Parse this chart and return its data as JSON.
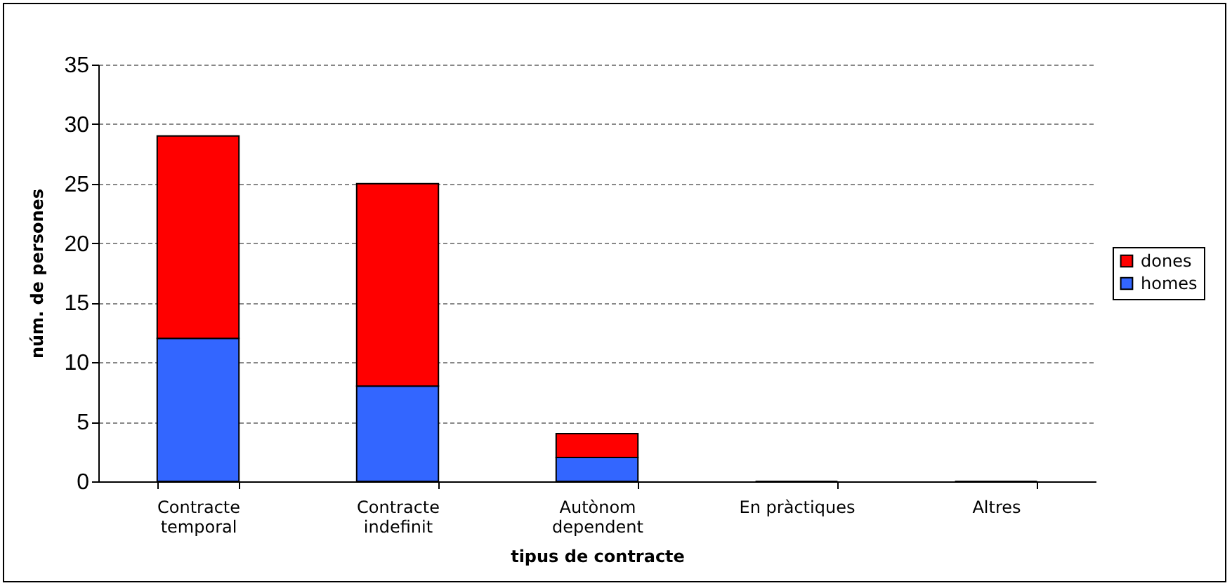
{
  "chart_data": {
    "type": "bar",
    "stacked": true,
    "xlabel": "tipus de contracte",
    "ylabel": "núm. de persones",
    "categories": [
      "Contracte temporal",
      "Contracte indefinit",
      "Autònom dependent",
      "En pràctiques",
      "Altres"
    ],
    "series": [
      {
        "name": "homes",
        "color": "#3366ff",
        "values": [
          12,
          8,
          2,
          0,
          0
        ]
      },
      {
        "name": "dones",
        "color": "#ff0000",
        "values": [
          17,
          17,
          2,
          0,
          0
        ]
      }
    ],
    "ylim": [
      0,
      35
    ],
    "yticks": [
      0,
      5,
      10,
      15,
      20,
      25,
      30,
      35
    ],
    "grid": "y",
    "legend": "right"
  }
}
